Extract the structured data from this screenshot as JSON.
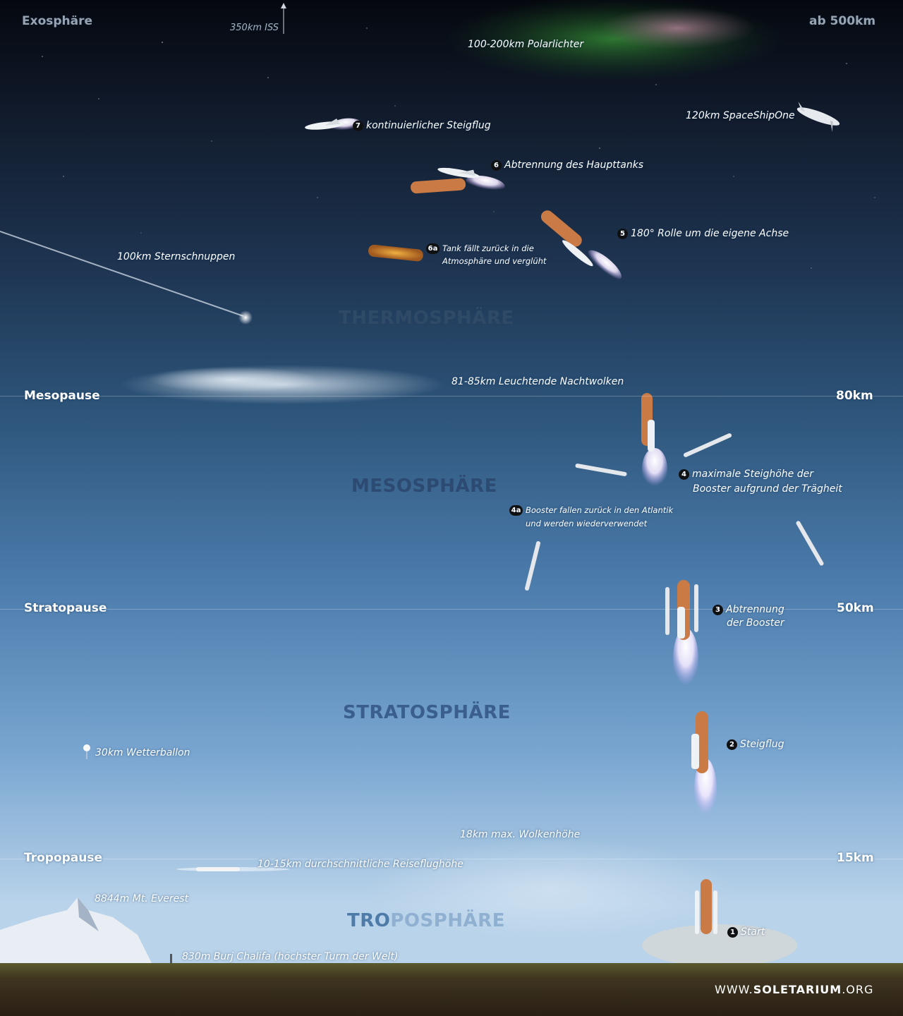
{
  "layers": {
    "exosphere": "Exosphäre",
    "thermosphere": "THERMOSPHÄRE",
    "mesosphere": "MESOSPHÄRE",
    "stratosphere": "STRATOSPHÄRE",
    "troposphere_bold": "TRO",
    "troposphere_rest": "POSPHÄRE"
  },
  "boundaries": {
    "mesopause": "Mesopause",
    "stratopause": "Stratopause",
    "tropopause": "Tropopause"
  },
  "altitudes": {
    "exo": "ab 500km",
    "meso": "80km",
    "strato": "50km",
    "tropo": "15km"
  },
  "objects": {
    "iss": "350km ISS",
    "aurora": "100-200km Polarlichter",
    "spaceshipone": "120km SpaceShipOne",
    "meteors": "100km Sternschnuppen",
    "nlc": "81-85km Leuchtende Nachtwolken",
    "balloon": "30km Wetterballon",
    "clouds": "18km max. Wolkenhöhe",
    "cruise": "10-15km durchschnittliche Reiseflughöhe",
    "everest": "8844m Mt. Everest",
    "burj": "830m Burj Chalifa (höchster Turm der Welt)"
  },
  "steps": [
    {
      "num": "7",
      "text": "kontinuierlicher Steigflug"
    },
    {
      "num": "6",
      "text": "Abtrennung des Haupttanks"
    },
    {
      "num": "5",
      "text": "180° Rolle um die eigene Achse"
    },
    {
      "num": "6a",
      "line1": "Tank fällt zurück in die",
      "line2": "Atmosphäre und verglüht"
    },
    {
      "num": "4",
      "line1": "maximale Steighöhe der",
      "line2": "Booster aufgrund der Trägheit"
    },
    {
      "num": "4a",
      "line1": "Booster fallen zurück in den Atlantik",
      "line2": "und werden wiederverwendet"
    },
    {
      "num": "3",
      "line1": "Abtrennung",
      "line2": "der Booster"
    },
    {
      "num": "2",
      "text": "Steigflug"
    },
    {
      "num": "1",
      "text": "Start"
    }
  ],
  "footer": {
    "prefix": "WWW.",
    "brand": "SOLETARIUM",
    "suffix": ".ORG"
  },
  "colors": {
    "sky_top": "#0a0f1a",
    "sky_mid": "#2f5f8c",
    "sky_low": "#8cb4d8",
    "ground": "#4a4430",
    "orbiter": "#e8ecf0",
    "tank": "#c97a45",
    "layer_text": "#2c4a72"
  }
}
